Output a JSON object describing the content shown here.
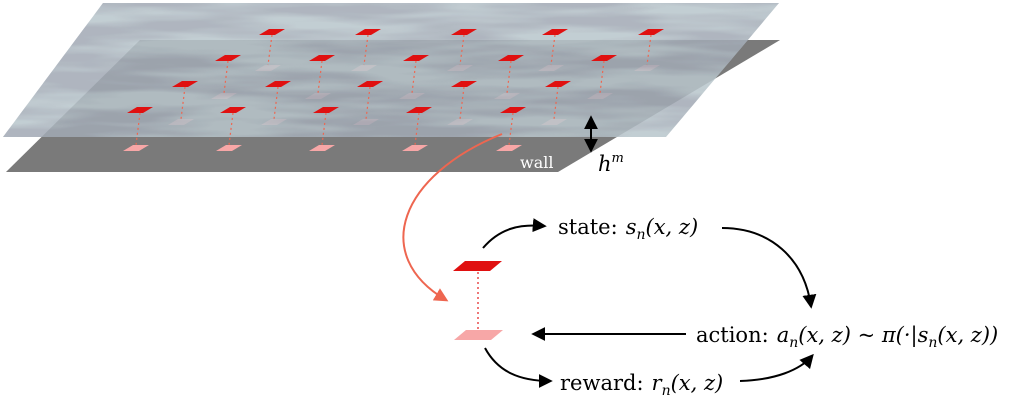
{
  "diagram": {
    "wall_label": "wall",
    "height_label": {
      "base": "h",
      "sup": "m"
    },
    "state": {
      "word": "state:",
      "sym": "s",
      "sub": "n",
      "args": "(x, z)"
    },
    "action": {
      "word": "action:",
      "sym": "a",
      "sub": "n",
      "mid": "(x, z) ~ π(·|",
      "sym2": "s",
      "sub2": "n",
      "end": "(x, z))"
    },
    "reward": {
      "word": "reward:",
      "sym": "r",
      "sub": "n",
      "args": "(x, z)"
    }
  },
  "colors": {
    "wall": "#7a7a7a",
    "flow_dark": "#454d5e",
    "flow_light": "#b9c6cc",
    "agent_top": "#e01010",
    "agent_bottom": "#f7a7a7",
    "link_arrow": "#ee6650",
    "arrow": "#000000"
  }
}
